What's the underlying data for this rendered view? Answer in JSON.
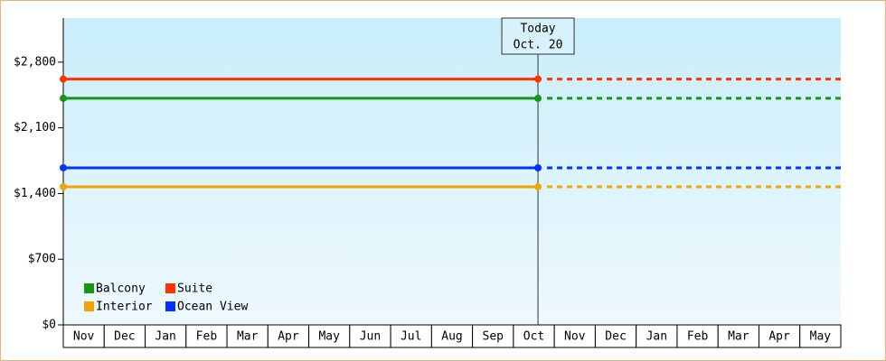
{
  "chart_data": {
    "type": "line",
    "annotation": {
      "lines": [
        "Today",
        "Oct. 20"
      ]
    },
    "categories": [
      "Nov",
      "Dec",
      "Jan",
      "Feb",
      "Mar",
      "Apr",
      "May",
      "Jun",
      "Jul",
      "Aug",
      "Sep",
      "Oct",
      "Nov",
      "Dec",
      "Jan",
      "Feb",
      "Mar",
      "Apr",
      "May"
    ],
    "series": [
      {
        "name": "Balcony",
        "color": "#119911",
        "value": 2415
      },
      {
        "name": "Suite",
        "color": "#ff3300",
        "value": 2620
      },
      {
        "name": "Interior",
        "color": "#f5a300",
        "value": 1472
      },
      {
        "name": "Ocean View",
        "color": "#0033ff",
        "value": 1674
      }
    ],
    "ylim": [
      0,
      3270
    ],
    "yticks": [
      {
        "value": 0,
        "label": "$0"
      },
      {
        "value": 700,
        "label": "$700"
      },
      {
        "value": 1400,
        "label": "$1,400"
      },
      {
        "value": 2100,
        "label": "$2,100"
      },
      {
        "value": 2800,
        "label": "$2,800"
      }
    ]
  }
}
